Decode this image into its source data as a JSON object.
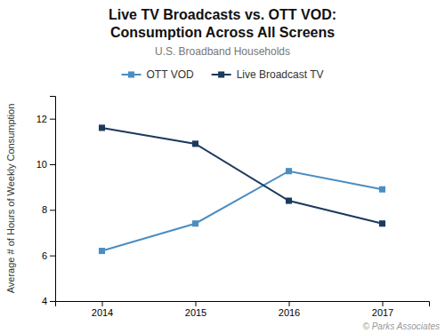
{
  "chart_data": {
    "type": "line",
    "title": [
      "Live TV Broadcasts vs. OTT VOD:",
      "Consumption Across All Screens"
    ],
    "subtitle": "U.S. Broadband Households",
    "y_label": "Average # of Hours of Weekly Consumption",
    "annotations": [
      "© Parks Associates"
    ],
    "x": [
      2014,
      2015,
      2016,
      2017
    ],
    "series": [
      {
        "name": "OTT VOD",
        "color": "#4a8ec2",
        "marker": "square",
        "values": [
          6.2,
          7.4,
          9.7,
          8.9
        ]
      },
      {
        "name": "Live Broadcast TV",
        "color": "#1b3a5e",
        "marker": "square",
        "values": [
          11.6,
          10.9,
          8.4,
          7.4
        ]
      }
    ],
    "xlim": [
      2013.5,
      2017.5
    ],
    "xticks": [
      2014,
      2015,
      2016,
      2017
    ],
    "ylim": [
      4,
      13
    ],
    "yticks": [
      4,
      6,
      8,
      10,
      12
    ],
    "grid": false,
    "legend": "top"
  }
}
